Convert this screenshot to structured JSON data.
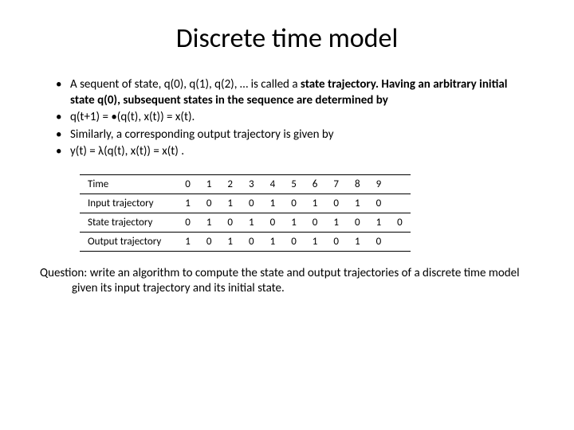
{
  "title": "Discrete time model",
  "bullets": [
    {
      "prefix": "A sequent of state, q(0), q(1), q(2), … is called a ",
      "bold": "state trajectory. Having an arbitrary initial state q(0), subsequent states in the sequence are determined by"
    },
    {
      "text": "q(t+1) = •(q(t), x(t)) = x(t)."
    },
    {
      "text": "Similarly, a corresponding output trajectory is given by"
    },
    {
      "text": "y(t) = λ(q(t), x(t)) = x(t) ."
    }
  ],
  "table": {
    "rows": [
      {
        "label": "Time",
        "values": [
          "0",
          "1",
          "2",
          "3",
          "4",
          "5",
          "6",
          "7",
          "8",
          "9",
          ""
        ]
      },
      {
        "label": "Input trajectory",
        "values": [
          "1",
          "0",
          "1",
          "0",
          "1",
          "0",
          "1",
          "0",
          "1",
          "0",
          ""
        ]
      },
      {
        "label": "State trajectory",
        "values": [
          "0",
          "1",
          "0",
          "1",
          "0",
          "1",
          "0",
          "1",
          "0",
          "1",
          "0"
        ]
      },
      {
        "label": "Output trajectory",
        "values": [
          "1",
          "0",
          "1",
          "0",
          "1",
          "0",
          "1",
          "0",
          "1",
          "0",
          ""
        ]
      }
    ],
    "font_size": 13,
    "border_color": "#000000",
    "cell_padding": "4px 10px"
  },
  "question": "Question: write an algorithm to compute the state and output trajectories of a discrete time model given its input trajectory and its initial state.",
  "colors": {
    "background": "#ffffff",
    "text": "#000000"
  }
}
